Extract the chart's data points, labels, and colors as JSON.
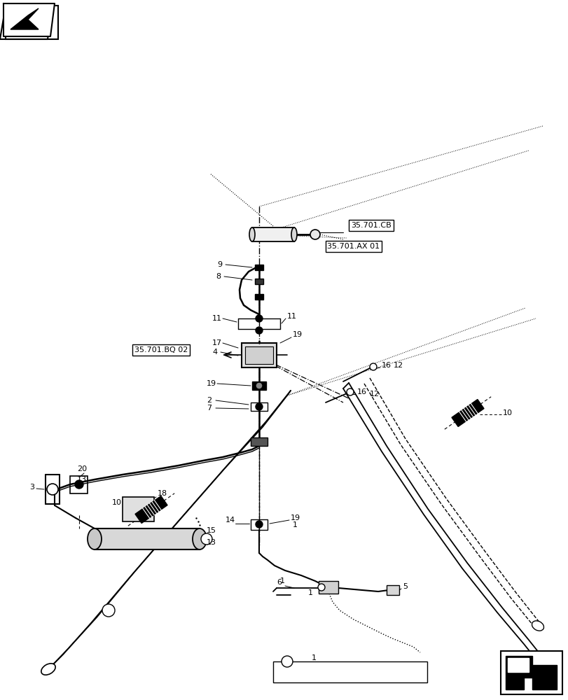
{
  "bg_color": "#ffffff",
  "line_color": "#000000",
  "fig_width": 8.12,
  "fig_height": 10.0,
  "dpi": 100,
  "left_arm": {
    "outer": [
      [
        0.42,
        0.37,
        0.3,
        0.22,
        0.15,
        0.09,
        0.07
      ],
      [
        0.565,
        0.62,
        0.69,
        0.775,
        0.855,
        0.92,
        0.955
      ]
    ],
    "inner": [
      [
        0.42,
        0.38,
        0.31,
        0.24,
        0.17,
        0.11,
        0.09
      ],
      [
        0.56,
        0.615,
        0.685,
        0.77,
        0.85,
        0.915,
        0.95
      ]
    ]
  },
  "left_arm2": {
    "outer": [
      [
        0.42,
        0.37,
        0.3,
        0.22,
        0.15,
        0.09,
        0.07
      ],
      [
        0.555,
        0.61,
        0.68,
        0.765,
        0.845,
        0.91,
        0.945
      ]
    ],
    "inner": [
      [
        0.42,
        0.38,
        0.31,
        0.24,
        0.17,
        0.11,
        0.09
      ],
      [
        0.55,
        0.605,
        0.675,
        0.76,
        0.84,
        0.905,
        0.94
      ]
    ]
  },
  "right_arm1": {
    "outer": [
      [
        0.5,
        0.56,
        0.63,
        0.7,
        0.75,
        0.79
      ],
      [
        0.565,
        0.65,
        0.74,
        0.825,
        0.89,
        0.95
      ]
    ],
    "inner": [
      [
        0.52,
        0.57,
        0.64,
        0.71,
        0.76,
        0.8
      ],
      [
        0.555,
        0.64,
        0.73,
        0.815,
        0.88,
        0.94
      ]
    ]
  },
  "right_arm2": {
    "outer": [
      [
        0.55,
        0.61,
        0.67,
        0.73,
        0.77,
        0.8
      ],
      [
        0.545,
        0.63,
        0.715,
        0.795,
        0.855,
        0.9
      ]
    ],
    "inner": [
      [
        0.57,
        0.62,
        0.68,
        0.74,
        0.78,
        0.81
      ],
      [
        0.535,
        0.62,
        0.705,
        0.785,
        0.845,
        0.89
      ]
    ]
  }
}
